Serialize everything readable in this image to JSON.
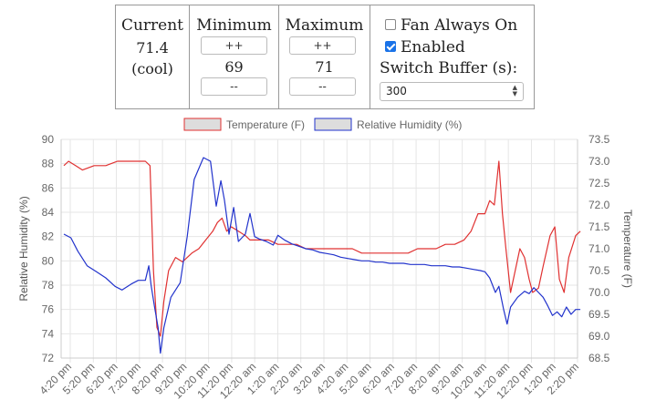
{
  "controls": {
    "current": {
      "title": "Current",
      "value": "71.4",
      "mode": "(cool)"
    },
    "minimum": {
      "title": "Minimum",
      "increment_label": "++",
      "value": "69",
      "decrement_label": "--"
    },
    "maximum": {
      "title": "Maximum",
      "increment_label": "++",
      "value": "71",
      "decrement_label": "--"
    },
    "options": {
      "fan_always_on": {
        "label": "Fan Always On",
        "checked": false
      },
      "enabled": {
        "label": "Enabled",
        "checked": true
      },
      "switch_buffer": {
        "label": "Switch Buffer (s):",
        "value": "300"
      }
    }
  },
  "chart_data": {
    "type": "line",
    "legend_position": "top-center",
    "grid": true,
    "xlabel": "",
    "x": [
      "4:20 pm",
      "5:20 pm",
      "6:20 pm",
      "7:20 pm",
      "8:20 pm",
      "9:20 pm",
      "10:20 pm",
      "11:20 pm",
      "12:20 am",
      "1:20 am",
      "2:20 am",
      "3:20 am",
      "4:20 am",
      "5:20 am",
      "6:20 am",
      "7:20 am",
      "8:20 am",
      "9:20 am",
      "10:20 am",
      "11:20 am",
      "12:20 pm",
      "1:20 pm",
      "2:20 pm"
    ],
    "y_left": {
      "label": "Relative Humidity (%)",
      "ticks": [
        90,
        88,
        86,
        84,
        82,
        80,
        78,
        76,
        74,
        72
      ],
      "range": [
        72,
        90
      ]
    },
    "y_right": {
      "label": "Temperature (F)",
      "ticks": [
        "73.5",
        "73.0",
        "72.5",
        "72.0",
        "71.5",
        "71.0",
        "70.5",
        "70.0",
        "69.5",
        "69.0",
        "68.5"
      ],
      "range": [
        68.5,
        73.5
      ]
    },
    "series": [
      {
        "name": "Temperature (F)",
        "axis": "right",
        "color": "#e03131",
        "points": [
          [
            0,
            72.9
          ],
          [
            0.2,
            73.0
          ],
          [
            0.5,
            72.9
          ],
          [
            0.8,
            72.8
          ],
          [
            1.3,
            72.9
          ],
          [
            1.8,
            72.9
          ],
          [
            2.3,
            73.0
          ],
          [
            3.0,
            73.0
          ],
          [
            3.5,
            73.0
          ],
          [
            3.7,
            72.9
          ],
          [
            3.85,
            70.5
          ],
          [
            4.0,
            69.2
          ],
          [
            4.15,
            69.0
          ],
          [
            4.3,
            69.8
          ],
          [
            4.5,
            70.5
          ],
          [
            4.8,
            70.8
          ],
          [
            5.1,
            70.7
          ],
          [
            5.5,
            70.9
          ],
          [
            5.8,
            71.0
          ],
          [
            6.1,
            71.2
          ],
          [
            6.4,
            71.4
          ],
          [
            6.6,
            71.6
          ],
          [
            6.8,
            71.7
          ],
          [
            7.0,
            71.4
          ],
          [
            7.2,
            71.5
          ],
          [
            7.5,
            71.4
          ],
          [
            7.8,
            71.3
          ],
          [
            8.0,
            71.2
          ],
          [
            8.4,
            71.2
          ],
          [
            8.8,
            71.2
          ],
          [
            9.2,
            71.1
          ],
          [
            9.6,
            71.1
          ],
          [
            10.0,
            71.1
          ],
          [
            10.4,
            71.0
          ],
          [
            10.8,
            71.0
          ],
          [
            11.2,
            71.0
          ],
          [
            11.6,
            71.0
          ],
          [
            12.0,
            71.0
          ],
          [
            12.4,
            71.0
          ],
          [
            12.8,
            70.9
          ],
          [
            13.2,
            70.9
          ],
          [
            13.6,
            70.9
          ],
          [
            14.0,
            70.9
          ],
          [
            14.4,
            70.9
          ],
          [
            14.8,
            70.9
          ],
          [
            15.2,
            71.0
          ],
          [
            15.6,
            71.0
          ],
          [
            16.0,
            71.0
          ],
          [
            16.4,
            71.1
          ],
          [
            16.8,
            71.1
          ],
          [
            17.2,
            71.2
          ],
          [
            17.5,
            71.4
          ],
          [
            17.8,
            71.8
          ],
          [
            18.1,
            71.8
          ],
          [
            18.3,
            72.1
          ],
          [
            18.5,
            72.0
          ],
          [
            18.7,
            73.0
          ],
          [
            18.85,
            71.8
          ],
          [
            19.0,
            71.0
          ],
          [
            19.2,
            70.0
          ],
          [
            19.4,
            70.5
          ],
          [
            19.6,
            71.0
          ],
          [
            19.8,
            70.8
          ],
          [
            20.0,
            70.3
          ],
          [
            20.15,
            70.0
          ],
          [
            20.4,
            70.1
          ],
          [
            20.6,
            70.6
          ],
          [
            20.9,
            71.3
          ],
          [
            21.1,
            71.5
          ],
          [
            21.3,
            70.3
          ],
          [
            21.5,
            70.0
          ],
          [
            21.7,
            70.8
          ],
          [
            22.0,
            71.3
          ],
          [
            22.2,
            71.4
          ]
        ]
      },
      {
        "name": "Relative Humidity (%)",
        "axis": "left",
        "color": "#2233cc",
        "points": [
          [
            0,
            82.2
          ],
          [
            0.3,
            81.9
          ],
          [
            0.6,
            80.8
          ],
          [
            1.0,
            79.6
          ],
          [
            1.4,
            79.1
          ],
          [
            1.8,
            78.6
          ],
          [
            2.2,
            77.9
          ],
          [
            2.5,
            77.6
          ],
          [
            2.9,
            78.1
          ],
          [
            3.2,
            78.4
          ],
          [
            3.5,
            78.4
          ],
          [
            3.65,
            79.6
          ],
          [
            3.75,
            78.0
          ],
          [
            3.9,
            76.2
          ],
          [
            4.05,
            74.5
          ],
          [
            4.15,
            72.4
          ],
          [
            4.3,
            74.5
          ],
          [
            4.6,
            77.0
          ],
          [
            5.0,
            78.2
          ],
          [
            5.3,
            82.0
          ],
          [
            5.6,
            86.7
          ],
          [
            6.0,
            88.5
          ],
          [
            6.3,
            88.2
          ],
          [
            6.55,
            84.5
          ],
          [
            6.75,
            86.6
          ],
          [
            6.9,
            85.0
          ],
          [
            7.1,
            82.2
          ],
          [
            7.3,
            84.4
          ],
          [
            7.5,
            81.6
          ],
          [
            7.8,
            82.2
          ],
          [
            8.0,
            83.9
          ],
          [
            8.2,
            82.0
          ],
          [
            8.4,
            81.8
          ],
          [
            8.7,
            81.6
          ],
          [
            9.0,
            81.3
          ],
          [
            9.2,
            82.1
          ],
          [
            9.5,
            81.7
          ],
          [
            9.8,
            81.4
          ],
          [
            10.1,
            81.2
          ],
          [
            10.4,
            81.0
          ],
          [
            10.7,
            80.9
          ],
          [
            11.0,
            80.7
          ],
          [
            11.3,
            80.6
          ],
          [
            11.6,
            80.5
          ],
          [
            11.9,
            80.3
          ],
          [
            12.2,
            80.2
          ],
          [
            12.5,
            80.1
          ],
          [
            12.8,
            80.0
          ],
          [
            13.1,
            80.0
          ],
          [
            13.4,
            79.9
          ],
          [
            13.7,
            79.9
          ],
          [
            14.0,
            79.8
          ],
          [
            14.3,
            79.8
          ],
          [
            14.6,
            79.8
          ],
          [
            14.9,
            79.7
          ],
          [
            15.2,
            79.7
          ],
          [
            15.5,
            79.7
          ],
          [
            15.8,
            79.6
          ],
          [
            16.1,
            79.6
          ],
          [
            16.4,
            79.6
          ],
          [
            16.7,
            79.5
          ],
          [
            17.0,
            79.5
          ],
          [
            17.3,
            79.4
          ],
          [
            17.6,
            79.3
          ],
          [
            17.9,
            79.2
          ],
          [
            18.1,
            79.1
          ],
          [
            18.3,
            78.6
          ],
          [
            18.55,
            77.4
          ],
          [
            18.7,
            77.9
          ],
          [
            18.9,
            76.0
          ],
          [
            19.05,
            74.8
          ],
          [
            19.2,
            76.2
          ],
          [
            19.5,
            77.0
          ],
          [
            19.8,
            77.5
          ],
          [
            20.0,
            77.3
          ],
          [
            20.2,
            77.8
          ],
          [
            20.4,
            77.4
          ],
          [
            20.6,
            77.0
          ],
          [
            20.8,
            76.3
          ],
          [
            21.0,
            75.5
          ],
          [
            21.2,
            75.8
          ],
          [
            21.4,
            75.4
          ],
          [
            21.6,
            76.2
          ],
          [
            21.8,
            75.6
          ],
          [
            22.0,
            76.0
          ],
          [
            22.2,
            76.0
          ]
        ]
      }
    ]
  }
}
